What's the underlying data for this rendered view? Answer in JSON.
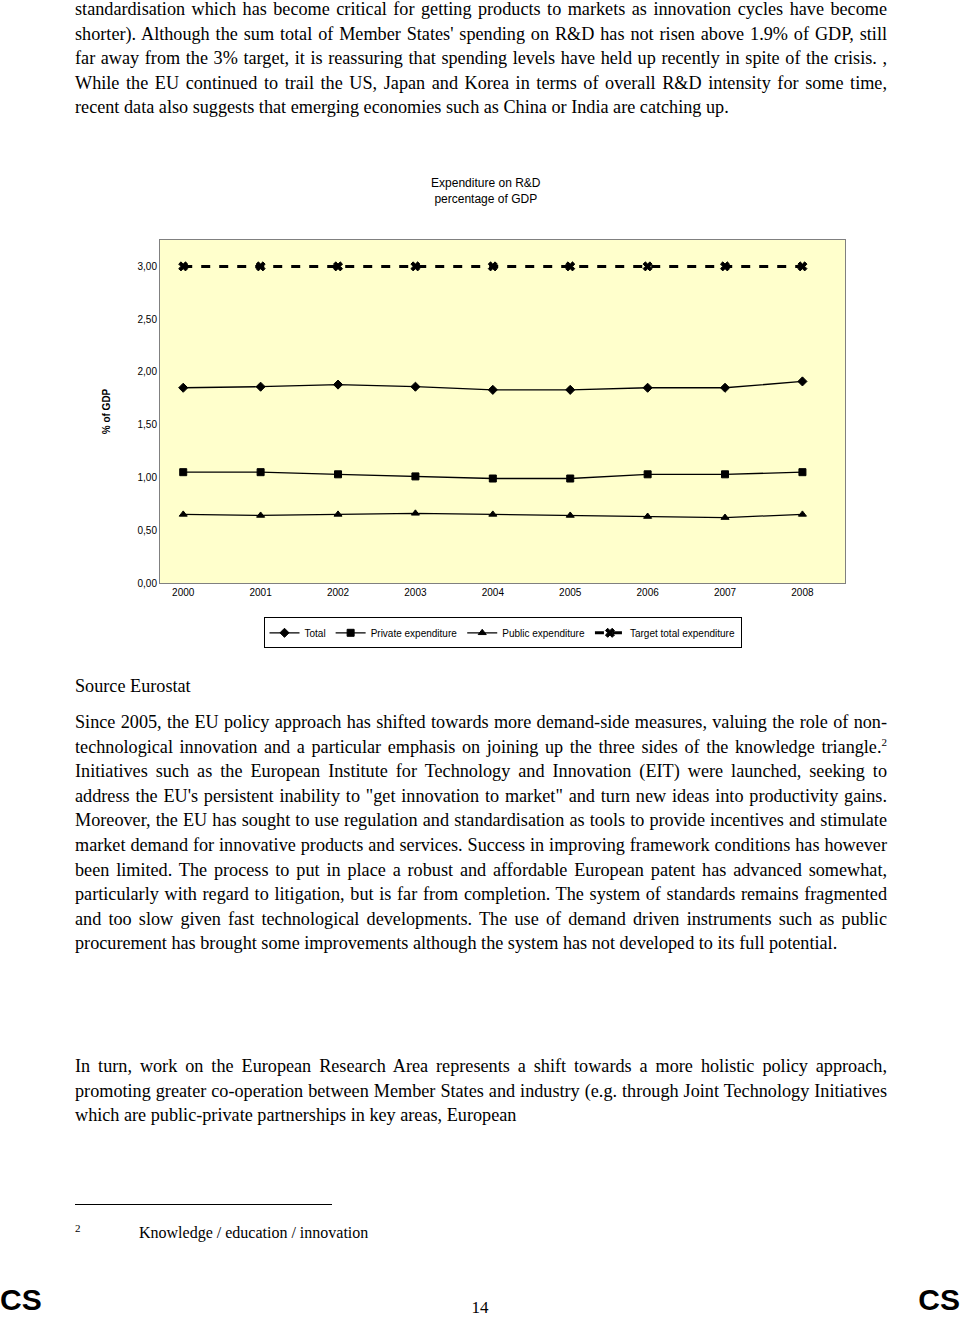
{
  "document": {
    "paragraphs": [
      {
        "text": "standardisation which has become critical for getting products to markets as innovation cycles have become shorter). Although the sum total of Member States' spending on R&D has not risen above 1.9% of GDP, still far away from the 3% target, it is reassuring that spending levels have held up recently in spite of the crisis. , While the EU continued to trail the US, Japan and Korea in terms of overall R&D intensity for some time, recent data also suggests that emerging economies such as China or India are catching up."
      },
      {
        "text": "Since 2005, the EU policy approach has shifted towards more demand-side measures, valuing the role of non-technological innovation and a particular emphasis on joining up the three sides of the knowledge triangle.",
        "footnote_ref": "2",
        "after": " Initiatives such as the European Institute for Technology and Innovation (EIT) were launched, seeking to address the EU's persistent inability to \"get innovation to market\" and turn new ideas into productivity gains. Moreover, the EU has sought to use regulation and standardisation as tools to provide incentives and stimulate market demand for innovative products and services. Success in improving framework conditions has however been limited. The process to put in place a robust and affordable European patent has advanced somewhat, particularly with regard to litigation, but is far from completion. The system of standards remains fragmented and too slow given fast technological developments. The use of demand driven instruments such as public procurement has brought some improvements although the system has not developed to its full potential."
      },
      {
        "text": "In turn, work on the European Research Area represents a shift towards a more holistic policy approach, promoting greater co-operation between Member States and industry (e.g. through Joint Technology Initiatives which are public-private partnerships in key areas, European"
      }
    ],
    "source": "Source Eurostat",
    "footnote": {
      "marker": "2",
      "text": "Knowledge / education / innovation"
    },
    "footer": {
      "left": "CS",
      "page": "14",
      "right": "CS"
    }
  },
  "chart_data": {
    "type": "line",
    "title": "Expenditure on R&D",
    "subtitle": "percentage of GDP",
    "y_label": "% of GDP",
    "categories": [
      "2000",
      "2001",
      "2002",
      "2003",
      "2004",
      "2005",
      "2006",
      "2007",
      "2008"
    ],
    "series": [
      {
        "name": "Total",
        "color": "#000000",
        "marker": "diamond",
        "line_style": "solid",
        "values": [
          1.85,
          1.86,
          1.88,
          1.86,
          1.83,
          1.83,
          1.85,
          1.85,
          1.91
        ]
      },
      {
        "name": "Private expenditure",
        "color": "#000000",
        "marker": "square",
        "line_style": "solid",
        "values": [
          1.05,
          1.05,
          1.03,
          1.01,
          0.99,
          0.99,
          1.03,
          1.03,
          1.05
        ]
      },
      {
        "name": "Public expenditure",
        "color": "#000000",
        "marker": "triangle-up",
        "line_style": "solid",
        "values": [
          0.65,
          0.64,
          0.65,
          0.66,
          0.65,
          0.64,
          0.63,
          0.62,
          0.65
        ]
      },
      {
        "name": "Target total expenditure",
        "color": "#000000",
        "marker": "x",
        "line_style": "dash",
        "values": [
          3.0,
          3.0,
          3.0,
          3.0,
          3.0,
          3.0,
          3.0,
          3.0,
          3.0
        ]
      }
    ],
    "ylim": [
      0,
      3.25
    ],
    "yticks": [
      {
        "value": 0,
        "label": "0,00"
      },
      {
        "value": 0.5,
        "label": "0,50"
      },
      {
        "value": 1,
        "label": "1,00"
      },
      {
        "value": 1.5,
        "label": "1,50"
      },
      {
        "value": 2,
        "label": "2,00"
      },
      {
        "value": 2.5,
        "label": "2,50"
      },
      {
        "value": 3,
        "label": "3,00"
      }
    ],
    "grid": false,
    "legend": "bottom"
  }
}
